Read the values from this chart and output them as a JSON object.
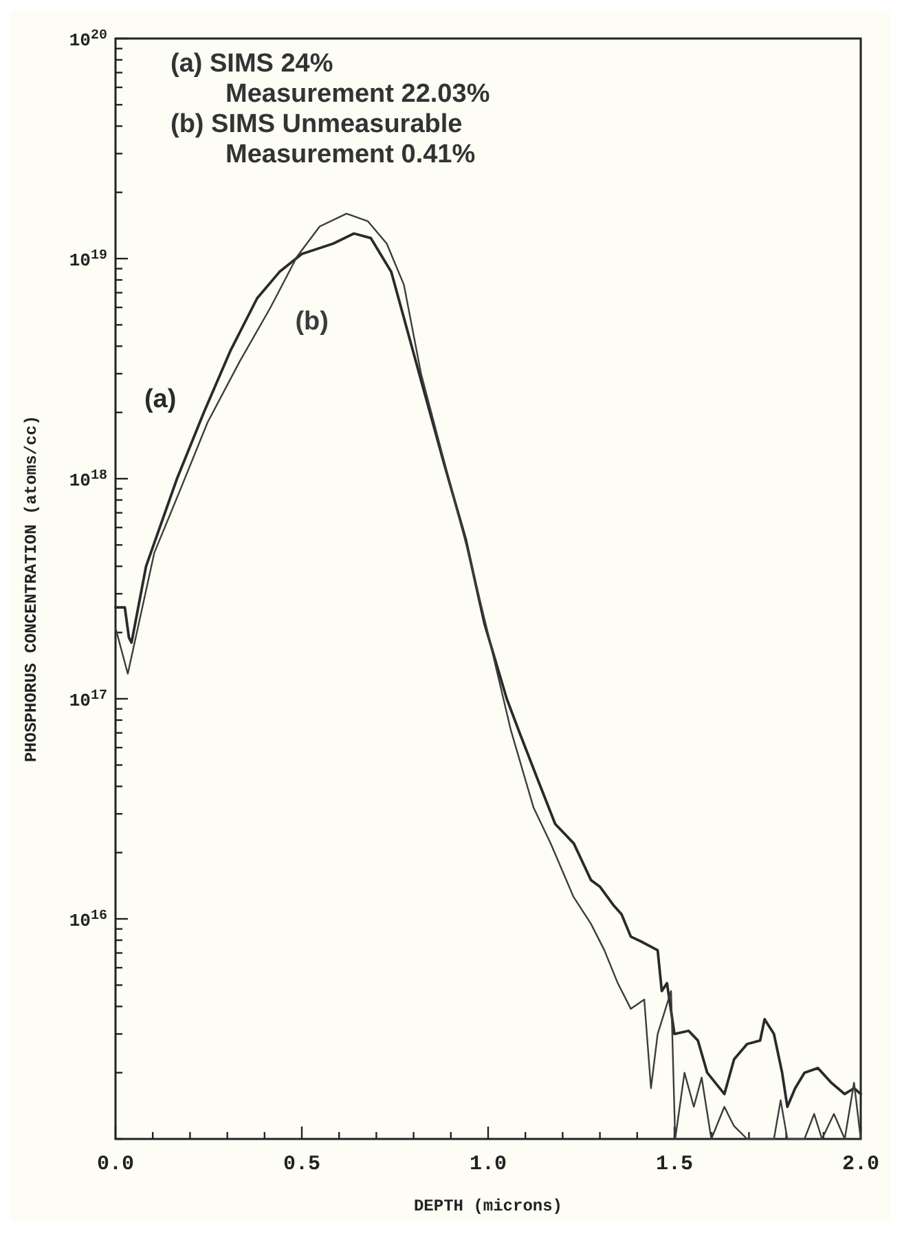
{
  "chart_data": {
    "type": "line",
    "xlabel": "DEPTH (microns)",
    "ylabel": "PHOSPHORUS CONCENTRATION (atoms/cc)",
    "annotations": [
      "(a) SIMS 24%",
      "Measurement 22.03%",
      "(b) SIMS Unmeasurable",
      "Measurement 0.41%"
    ],
    "log": "y",
    "grid": false,
    "marker": "none",
    "line_style": "solid",
    "xlim": [
      0,
      2
    ],
    "ylim": [
      1000000000000000.0,
      1e+20
    ],
    "xticks": [
      {
        "value": 0,
        "label": "0.0"
      },
      {
        "value": 0.1,
        "label": null
      },
      {
        "value": 0.2,
        "label": null
      },
      {
        "value": 0.3,
        "label": null
      },
      {
        "value": 0.4,
        "label": null
      },
      {
        "value": 0.5,
        "label": "0.5"
      },
      {
        "value": 0.6,
        "label": null
      },
      {
        "value": 0.7,
        "label": null
      },
      {
        "value": 0.8,
        "label": null
      },
      {
        "value": 0.9,
        "label": null
      },
      {
        "value": 1,
        "label": "1.0"
      },
      {
        "value": 1.1,
        "label": null
      },
      {
        "value": 1.2,
        "label": null
      },
      {
        "value": 1.3,
        "label": null
      },
      {
        "value": 1.4,
        "label": null
      },
      {
        "value": 1.5,
        "label": "1.5"
      },
      {
        "value": 1.6,
        "label": null
      },
      {
        "value": 1.7,
        "label": null
      },
      {
        "value": 1.8,
        "label": null
      },
      {
        "value": 1.9,
        "label": null
      },
      {
        "value": 2,
        "label": "2.0"
      }
    ],
    "yticks": [
      {
        "value": 1000000000000000.0,
        "label": null
      },
      {
        "value": 2000000000000000.0,
        "label": null
      },
      {
        "value": 3000000000000000.0,
        "label": null
      },
      {
        "value": 4000000000000000.0,
        "label": null
      },
      {
        "value": 5000000000000000.0,
        "label": null
      },
      {
        "value": 6000000000000000.0,
        "label": null
      },
      {
        "value": 7000000000000000.0,
        "label": null
      },
      {
        "value": 8000000000000000.0,
        "label": null
      },
      {
        "value": 9000000000000000.0,
        "label": null
      },
      {
        "value": 1e+16,
        "label": "10$^{16}$"
      },
      {
        "value": 2e+16,
        "label": null
      },
      {
        "value": 3e+16,
        "label": null
      },
      {
        "value": 4e+16,
        "label": null
      },
      {
        "value": 5e+16,
        "label": null
      },
      {
        "value": 6e+16,
        "label": null
      },
      {
        "value": 7e+16,
        "label": null
      },
      {
        "value": 8e+16,
        "label": null
      },
      {
        "value": 9e+16,
        "label": null
      },
      {
        "value": 1e+17,
        "label": "10$^{17}$"
      },
      {
        "value": 2e+17,
        "label": null
      },
      {
        "value": 3e+17,
        "label": null
      },
      {
        "value": 4e+17,
        "label": null
      },
      {
        "value": 5e+17,
        "label": null
      },
      {
        "value": 6e+17,
        "label": null
      },
      {
        "value": 7e+17,
        "label": null
      },
      {
        "value": 8e+17,
        "label": null
      },
      {
        "value": 9e+17,
        "label": null
      },
      {
        "value": 1e+18,
        "label": "10$^{18}$"
      },
      {
        "value": 2e+18,
        "label": null
      },
      {
        "value": 3e+18,
        "label": null
      },
      {
        "value": 4e+18,
        "label": null
      },
      {
        "value": 5e+18,
        "label": null
      },
      {
        "value": 6e+18,
        "label": null
      },
      {
        "value": 7e+18,
        "label": null
      },
      {
        "value": 8e+18,
        "label": null
      },
      {
        "value": 9e+18,
        "label": null
      },
      {
        "value": 1e+19,
        "label": "10$^{19}$"
      },
      {
        "value": 2e+19,
        "label": null
      },
      {
        "value": 3e+19,
        "label": null
      },
      {
        "value": 4e+19,
        "label": null
      },
      {
        "value": 5e+19,
        "label": null
      },
      {
        "value": 6e+19,
        "label": null
      },
      {
        "value": 7e+19,
        "label": null
      },
      {
        "value": 8e+19,
        "label": null
      },
      {
        "value": 9e+19,
        "label": null
      },
      {
        "value": 1e+20,
        "label": "10$^{20}$"
      }
    ],
    "series": [
      {
        "name": "(a)",
        "color": "#2a2a2a",
        "x": [
          0,
          0.025,
          0.036,
          0.043,
          0.082,
          0.165,
          0.237,
          0.308,
          0.38,
          0.44,
          0.5,
          0.584,
          0.64,
          0.685,
          0.74,
          0.82,
          0.88,
          0.94,
          0.99,
          1.05,
          1.086,
          1.133,
          1.18,
          1.23,
          1.276,
          1.3,
          1.337,
          1.358,
          1.383,
          1.41,
          1.455,
          1.466,
          1.48,
          1.5,
          1.538,
          1.563,
          1.588,
          1.634,
          1.66,
          1.695,
          1.73,
          1.742,
          1.767,
          1.789,
          1.803,
          1.824,
          1.849,
          1.885,
          1.921,
          1.957,
          1.982,
          2.0
        ],
        "values": [
          2.6e+17,
          2.6e+17,
          1.9e+17,
          1.8e+17,
          4e+17,
          1e+18,
          2e+18,
          3.8e+18,
          6.6e+18,
          8.7e+18,
          1.05e+19,
          1.17e+19,
          1.3e+19,
          1.24e+19,
          8.7e+18,
          2.8e+18,
          1.2e+18,
          5.3e+17,
          2.2e+17,
          1e+17,
          6.9e+16,
          4.3e+16,
          2.7e+16,
          2.2e+16,
          1.5e+16,
          1.4e+16,
          1.15e+16,
          1.05e+16,
          8300000000000000.0,
          7900000000000000.0,
          7200000000000000.0,
          4700000000000000.0,
          5100000000000000.0,
          3000000000000000.0,
          3100000000000000.0,
          2800000000000000.0,
          2000000000000000.0,
          1600000000000000.0,
          2300000000000000.0,
          2700000000000000.0,
          2800000000000000.0,
          3500000000000000.0,
          3000000000000000.0,
          2000000000000000.0,
          1400000000000000.0,
          1700000000000000.0,
          2000000000000000.0,
          2100000000000000.0,
          1800000000000000.0,
          1600000000000000.0,
          1700000000000000.0,
          1600000000000000.0
        ]
      },
      {
        "name": "(b)",
        "color": "#3c3c3c",
        "x": [
          0,
          0.033,
          0.104,
          0.176,
          0.247,
          0.333,
          0.416,
          0.487,
          0.548,
          0.62,
          0.677,
          0.728,
          0.774,
          0.82,
          0.882,
          0.943,
          0.996,
          1.061,
          1.122,
          1.168,
          1.229,
          1.276,
          1.312,
          1.348,
          1.383,
          1.419,
          1.437,
          1.455,
          1.491,
          1.502,
          1.527,
          1.552,
          1.573,
          1.599,
          1.634,
          1.659,
          1.695,
          1.731,
          1.767,
          1.785,
          1.803,
          1.849,
          1.875,
          1.896,
          1.928,
          1.957,
          1.982,
          2.0
        ],
        "values": [
          2.1e+17,
          1.3e+17,
          4.6e+17,
          9.1e+17,
          1.8e+18,
          3.4e+18,
          6e+18,
          1.02e+19,
          1.4e+19,
          1.6e+19,
          1.48e+19,
          1.17e+19,
          7.6e+18,
          3e+18,
          1.2e+18,
          4.9e+17,
          2.1e+17,
          7.2e+16,
          3.2e+16,
          2.2e+16,
          1.26e+16,
          9500000000000000.0,
          7200000000000000.0,
          5100000000000000.0,
          3900000000000000.0,
          4300000000000000.0,
          1700000000000000.0,
          3000000000000000.0,
          4700000000000000.0,
          1000000000000000.0,
          2000000000000000.0,
          1400000000000000.0,
          1900000000000000.0,
          1000000000000000.0,
          1400000000000000.0,
          1150000000000000.0,
          1000000000000000.0,
          1000000000000000.0,
          1000000000000000.0,
          1500000000000000.0,
          1000000000000000.0,
          1000000000000000.0,
          1300000000000000.0,
          1000000000000000.0,
          1300000000000000.0,
          1000000000000000.0,
          1800000000000000.0,
          1000000000000000.0
        ]
      }
    ]
  }
}
